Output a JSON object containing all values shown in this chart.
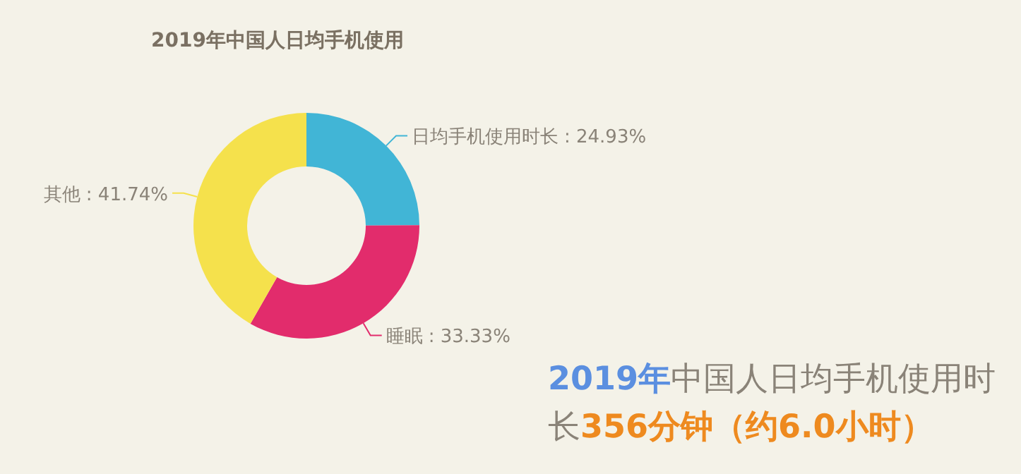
{
  "chart_data": {
    "type": "donut",
    "title": "2019年中国人日均手机使用",
    "categories": [
      "日均手机使用时长",
      "睡眠",
      "其他"
    ],
    "values": [
      24.93,
      33.33,
      41.74
    ],
    "colors": [
      "#41b5d6",
      "#e22c6c",
      "#f5e14c"
    ],
    "value_labels": [
      ": 24.93%",
      ": 33.33%",
      ": 41.74%"
    ],
    "annotations": [
      "2019年中国人日均手机使用时长356分钟（约6.0小时）"
    ]
  }
}
